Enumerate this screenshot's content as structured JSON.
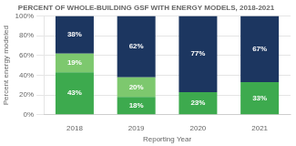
{
  "chart_data": {
    "type": "bar",
    "title": "PERCENT OF WHOLE-BUILDING GSF WITH ENERGY MODELS, 2018-2021",
    "x_label": "Reporting Year",
    "y_label": "Percent energy modeled",
    "categories": [
      "2018",
      "2019",
      "2020",
      "2021"
    ],
    "series": [
      {
        "color": "#3daa4e",
        "values": [
          43,
          18,
          23,
          33
        ],
        "value_labels": [
          "43%",
          "18%",
          "23%",
          "33%"
        ]
      },
      {
        "color": "#7dc86e",
        "values": [
          19,
          20,
          0,
          0
        ],
        "value_labels": [
          "19%",
          "20%",
          null,
          null
        ]
      },
      {
        "color": "#1c3660",
        "values": [
          38,
          62,
          77,
          67
        ],
        "value_labels": [
          "38%",
          "62%",
          "77%",
          "67%"
        ]
      }
    ],
    "stacked": true,
    "data_labels": true,
    "grid": true,
    "ylim": [
      0,
      100
    ],
    "yticks": [
      {
        "value": 0,
        "label": "0%"
      },
      {
        "value": 20,
        "label": "20%"
      },
      {
        "value": 40,
        "label": "40%"
      },
      {
        "value": 60,
        "label": "60%"
      },
      {
        "value": 80,
        "label": "80%"
      },
      {
        "value": 100,
        "label": "100%"
      }
    ]
  }
}
